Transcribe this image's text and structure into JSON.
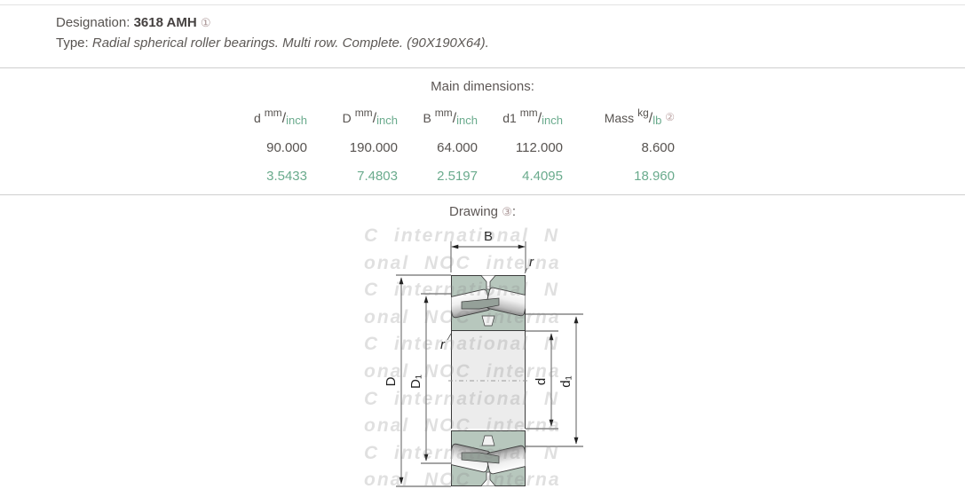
{
  "header": {
    "designation_label": "Designation:",
    "designation_value": "3618 AMH",
    "designation_note": "①",
    "type_label": "Type:",
    "type_value": "Radial spherical roller bearings. Multi row. Complete. (90X190X64)."
  },
  "dimensions": {
    "title": "Main dimensions:",
    "columns": [
      {
        "letter": "d",
        "unit_top": "mm",
        "unit_bottom": "inch",
        "note": "",
        "mm": "90.000",
        "inch": "3.5433"
      },
      {
        "letter": "D",
        "unit_top": "mm",
        "unit_bottom": "inch",
        "note": "",
        "mm": "190.000",
        "inch": "7.4803"
      },
      {
        "letter": "B",
        "unit_top": "mm",
        "unit_bottom": "inch",
        "note": "",
        "mm": "64.000",
        "inch": "2.5197"
      },
      {
        "letter": "d1",
        "unit_top": "mm",
        "unit_bottom": "inch",
        "note": "",
        "mm": "112.000",
        "inch": "4.4095"
      },
      {
        "letter": "Mass",
        "unit_top": "kg",
        "unit_bottom": "lb",
        "note": "②",
        "mm": "8.600",
        "inch": "18.960"
      }
    ]
  },
  "drawing": {
    "title": "Drawing",
    "note": "③",
    "title_suffix": ":",
    "labels": {
      "B": "B",
      "D": "D",
      "D1": "D₁",
      "d": "d",
      "d1": "d₁",
      "r_top": "r",
      "r_left": "r"
    },
    "watermark_line_a": "C international    N",
    "watermark_line_b": "onal   NOC interna",
    "watermark_rows": 11
  },
  "colors": {
    "accent_green": "#6aab8d",
    "ring_fill": "#b7c7bd",
    "bore_fill": "#ececec",
    "line": "#3b3b3b"
  }
}
